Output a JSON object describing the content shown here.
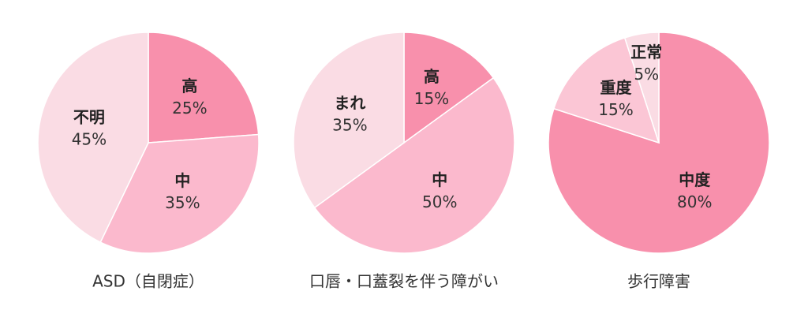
{
  "chart_data": [
    {
      "type": "pie",
      "title": "ASD（自閉症）",
      "categories": [
        "高",
        "中",
        "不明"
      ],
      "values": [
        25,
        35,
        45
      ],
      "value_labels": [
        "25%",
        "35%",
        "45%"
      ],
      "colors": [
        "#f890ac",
        "#fbb9cd",
        "#fadce4"
      ]
    },
    {
      "type": "pie",
      "title": "口唇・口蓋裂を伴う障がい",
      "categories": [
        "高",
        "中",
        "まれ"
      ],
      "values": [
        15,
        50,
        35
      ],
      "value_labels": [
        "15%",
        "50%",
        "35%"
      ],
      "colors": [
        "#f890ac",
        "#fbb9cd",
        "#fadce4"
      ]
    },
    {
      "type": "pie",
      "title": "歩行障害",
      "categories": [
        "中度",
        "重度",
        "正常"
      ],
      "values": [
        80,
        15,
        5
      ],
      "value_labels": [
        "80%",
        "15%",
        "5%"
      ],
      "colors": [
        "#f890ac",
        "#fbc6d5",
        "#fadce4"
      ]
    }
  ]
}
